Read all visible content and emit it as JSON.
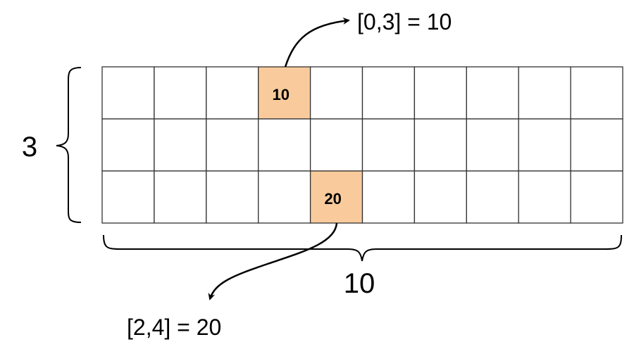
{
  "grid": {
    "rows": 3,
    "cols": 10,
    "highlight_color": "#f9cb9c",
    "cells": [
      {
        "row": 0,
        "col": 3,
        "value": "10"
      },
      {
        "row": 2,
        "col": 4,
        "value": "20"
      }
    ]
  },
  "labels": {
    "rows_count": "3",
    "cols_count": "10",
    "callout_top": "[0,3] = 10",
    "callout_bottom": "[2,4] = 20"
  }
}
